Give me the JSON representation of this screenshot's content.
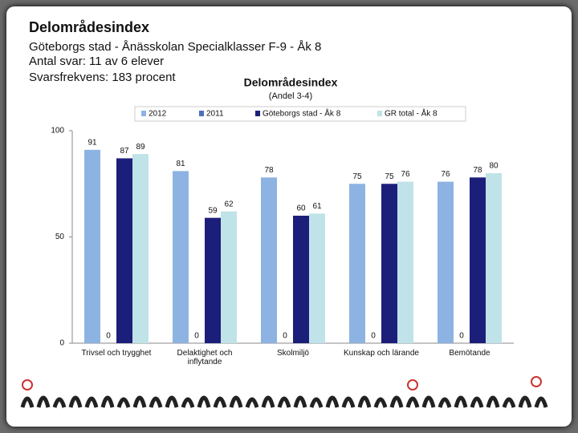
{
  "header": {
    "title": "Delområdesindex",
    "lines": [
      "Göteborgs stad - Ånässkolan Specialklasser F-9 - Åk 8",
      "Antal svar: 11 av 6 elever",
      "Svarsfrekvens: 183 procent"
    ]
  },
  "chart_data": {
    "type": "bar",
    "title": "Delområdesindex",
    "subtitle": "(Andel 3-4)",
    "categories": [
      "Trivsel och trygghet",
      "Delaktighet och inflytande",
      "Skolmiljö",
      "Kunskap och lärande",
      "Bemötande"
    ],
    "series": [
      {
        "name": "2012",
        "color": "#8db3e2",
        "values": [
          91,
          81,
          78,
          75,
          76
        ]
      },
      {
        "name": "2011",
        "color": "#4f6fc0",
        "values": [
          0,
          0,
          0,
          0,
          0
        ]
      },
      {
        "name": "Göteborgs stad - Åk 8",
        "color": "#1c1f7a",
        "values": [
          87,
          59,
          60,
          75,
          78
        ]
      },
      {
        "name": "GR total - Åk 8",
        "color": "#bfe3e8",
        "values": [
          89,
          62,
          61,
          76,
          80
        ]
      }
    ],
    "ylim": [
      0,
      100
    ],
    "yticks": [
      0,
      50,
      100
    ],
    "grid": false
  }
}
